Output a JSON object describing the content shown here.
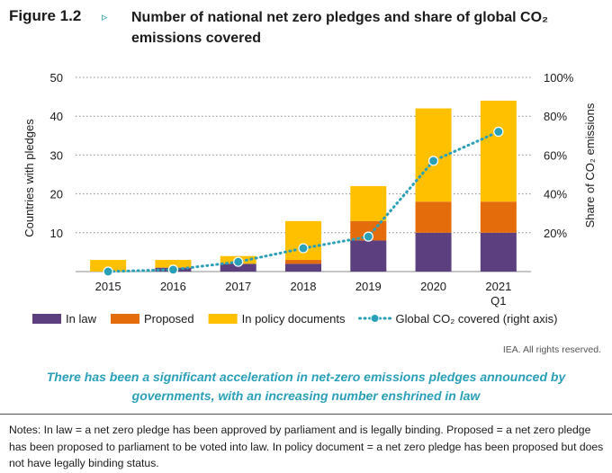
{
  "figure": {
    "label": "Figure 1.2",
    "arrow": "▹",
    "title": "Number of national net zero pledges and share of global CO₂ emissions covered"
  },
  "chart_data": {
    "type": "bar",
    "stacked": true,
    "categories": [
      "2015",
      "2016",
      "2017",
      "2018",
      "2019",
      "2020",
      "2021"
    ],
    "category_sublabels": [
      "",
      "",
      "",
      "",
      "",
      "",
      "Q1"
    ],
    "series": [
      {
        "name": "In law",
        "color": "#5b3f7f",
        "values": [
          0,
          1,
          2,
          2,
          8,
          10,
          10
        ]
      },
      {
        "name": "Proposed",
        "color": "#e46c0a",
        "values": [
          0,
          0,
          0,
          1,
          5,
          8,
          8
        ]
      },
      {
        "name": "In policy documents",
        "color": "#ffc000",
        "values": [
          3,
          2,
          2,
          10,
          9,
          24,
          26
        ]
      }
    ],
    "line_series": {
      "name": "Global CO₂ covered (right axis)",
      "color": "#2aa0b8",
      "axis": "right",
      "values": [
        0,
        1,
        5,
        12,
        18,
        57,
        72
      ]
    },
    "ylabel": "Countries with pledges",
    "ylabel_right": "Share of CO₂ emissions",
    "ylim": [
      0,
      50
    ],
    "ylim_right": [
      0,
      100
    ],
    "yticks": [
      "10",
      "20",
      "30",
      "40",
      "50"
    ],
    "yticks_right": [
      "20%",
      "40%",
      "60%",
      "80%",
      "100%"
    ],
    "grid": "dotted horizontal",
    "legend_position": "bottom"
  },
  "credit": "IEA. All rights reserved.",
  "caption": "There has been a significant acceleration in net-zero emissions pledges announced by governments, with an increasing number enshrined in law",
  "notes": "Notes: In law = a net zero pledge has been approved by parliament and is legally binding. Proposed = a net zero pledge has been proposed to parliament to be voted into law. In policy document = a net zero pledge has been proposed but does not have legally binding status."
}
